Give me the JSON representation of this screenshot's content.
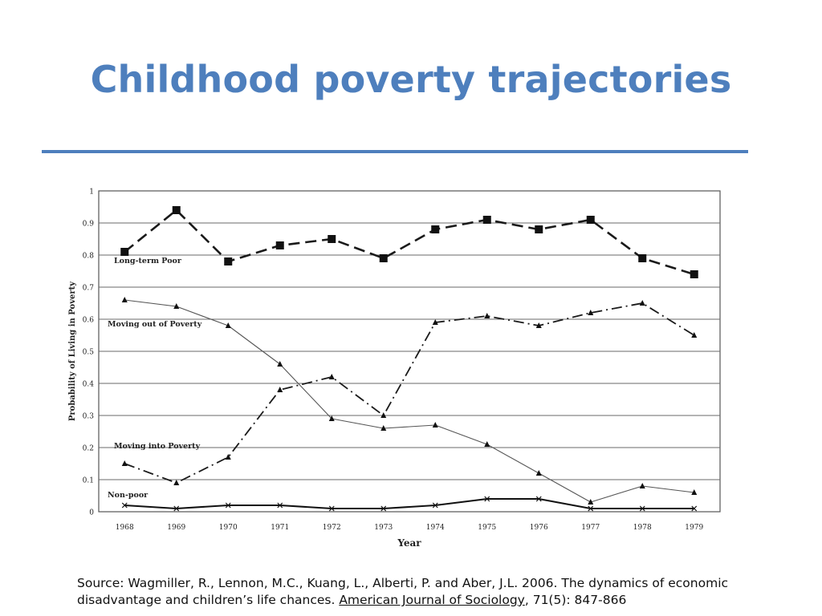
{
  "slide": {
    "title": "Childhood poverty trajectories",
    "source_part1": "Source: Wagmiller, R., Lennon, M.C., Kuang, L., Alberti, P. and Aber, J.L. 2006. The dynamics of economic disadvantage and children’s life chances. ",
    "source_journal": "American Journal of Sociology",
    "source_part2": ", 71(5): 847-866",
    "colors": {
      "title": "#4e7fbd",
      "rule": "#4e7fbd",
      "lines": "#222222",
      "grid": "#555555"
    }
  },
  "chart_data": {
    "type": "line",
    "title": "",
    "xlabel": "Year",
    "ylabel": "Probability of Living in Poverty",
    "x": [
      "1968",
      "1969",
      "1970",
      "1971",
      "1972",
      "1973",
      "1974",
      "1975",
      "1976",
      "1977",
      "1978",
      "1979"
    ],
    "ylim": [
      0,
      1
    ],
    "yticks": [
      "0",
      "0.1",
      "0.2",
      "0.3",
      "0.4",
      "0.5",
      "0.6",
      "0.7",
      "0.8",
      "0.9",
      "1"
    ],
    "grid": true,
    "legend": "inline labels",
    "series": [
      {
        "name": "Long-term Poor",
        "marker": "square",
        "dash": "long-dash",
        "values": [
          0.81,
          0.94,
          0.78,
          0.83,
          0.85,
          0.79,
          0.88,
          0.91,
          0.88,
          0.91,
          0.79,
          0.74
        ]
      },
      {
        "name": "Moving out of Poverty",
        "marker": "triangle",
        "dash": "solid-thin",
        "values": [
          0.66,
          0.64,
          0.58,
          0.46,
          0.29,
          0.26,
          0.27,
          0.21,
          0.12,
          0.03,
          0.08,
          0.06
        ]
      },
      {
        "name": "Moving into Poverty",
        "marker": "triangle",
        "dash": "dash-dot",
        "values": [
          0.15,
          0.09,
          0.17,
          0.38,
          0.42,
          0.3,
          0.59,
          0.61,
          0.58,
          0.62,
          0.65,
          0.55
        ]
      },
      {
        "name": "Non-poor",
        "marker": "x",
        "dash": "solid",
        "values": [
          0.02,
          0.01,
          0.02,
          0.02,
          0.01,
          0.01,
          0.02,
          0.04,
          0.04,
          0.01,
          0.01,
          0.01
        ]
      }
    ]
  }
}
